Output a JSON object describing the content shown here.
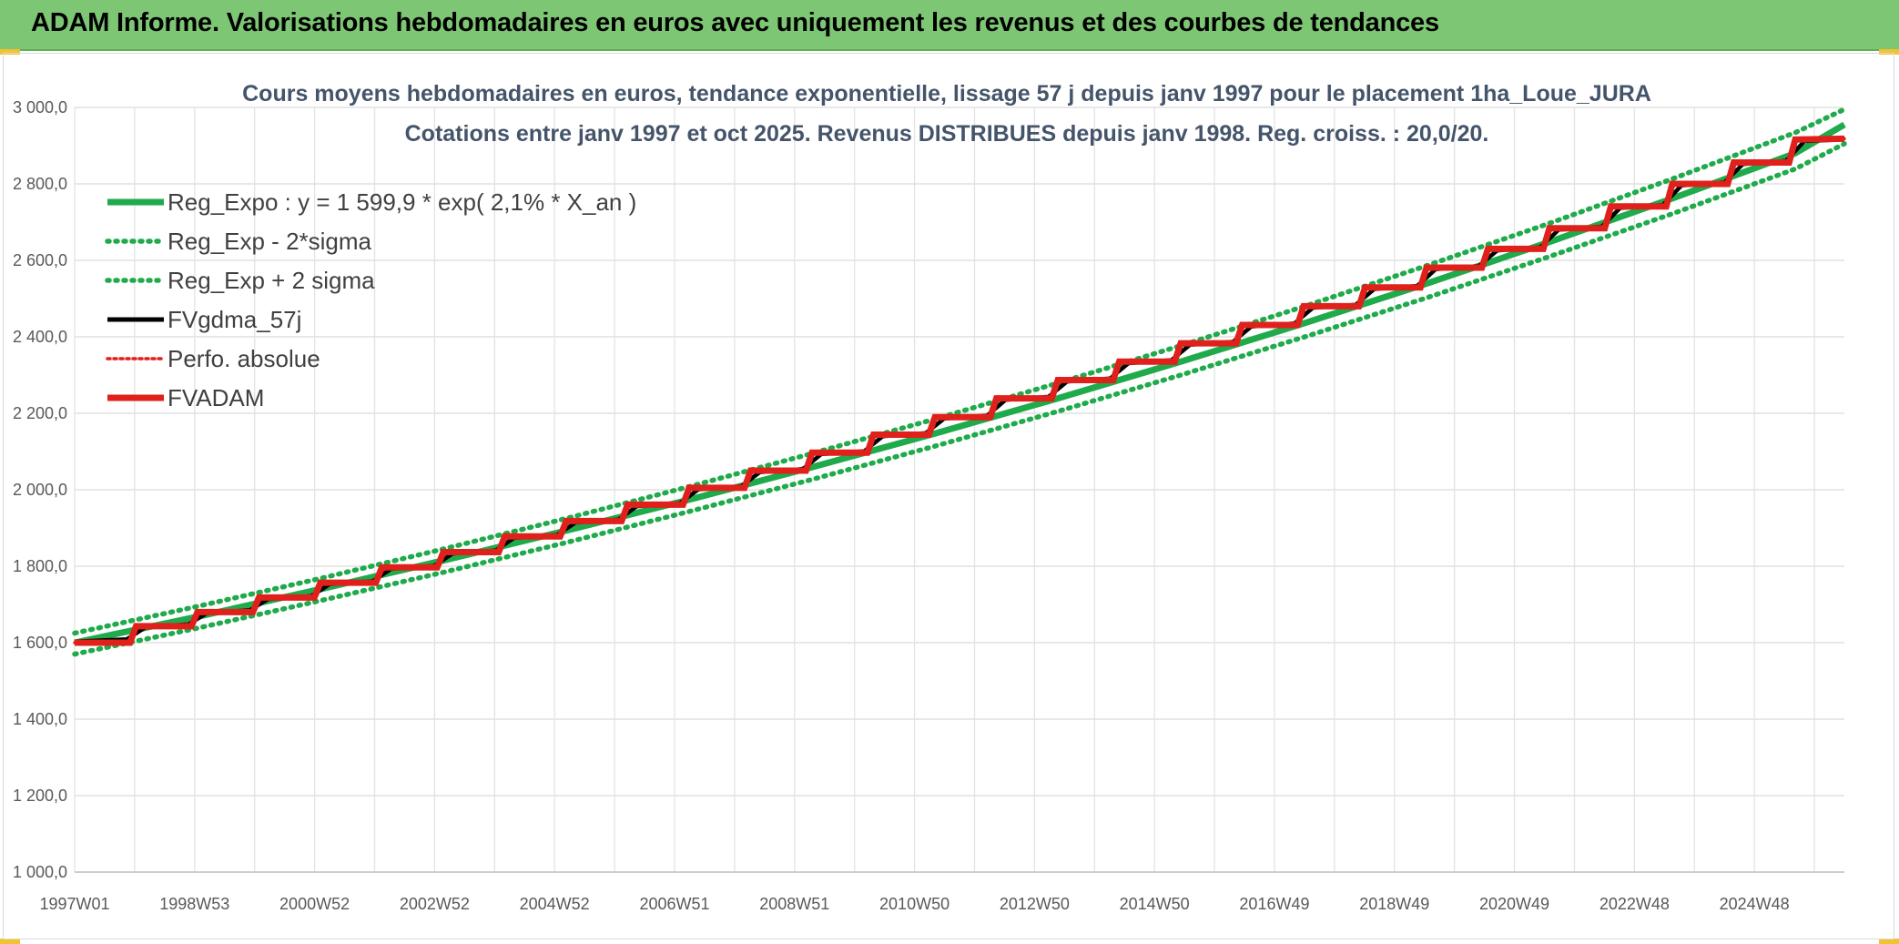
{
  "header": {
    "title": "ADAM Informe. Valorisations hebdomadaires en euros avec uniquement les revenus et des courbes de tendances"
  },
  "chart_data": {
    "type": "line",
    "title": "Cours moyens hebdomadaires en euros, tendance exponentielle, lissage 57 j depuis janv 1997 pour le placement 1ha_Loue_JURA",
    "subtitle": "Cotations entre janv 1997 et oct 2025. Revenus DISTRIBUES depuis janv 1998. Reg. croiss. : 20,0/20.",
    "xlabel": "",
    "ylabel": "",
    "ylim": [
      1000,
      3000
    ],
    "yticks": [
      1000,
      1200,
      1400,
      1600,
      1800,
      2000,
      2200,
      2400,
      2600,
      2800,
      3000
    ],
    "ytick_labels": [
      "1 000,0",
      "1 200,0",
      "1 400,0",
      "1 600,0",
      "1 800,0",
      "2 000,0",
      "2 200,0",
      "2 400,0",
      "2 600,0",
      "2 800,0",
      "3 000,0"
    ],
    "xlim": [
      1997.0,
      2025.8
    ],
    "x_tick_labels": [
      "1997W01",
      "1998W53",
      "2000W52",
      "2002W52",
      "2004W52",
      "2006W51",
      "2008W51",
      "2010W50",
      "2012W50",
      "2014W50",
      "2016W49",
      "2018W49",
      "2020W49",
      "2022W48",
      "2024W48"
    ],
    "grid": true,
    "legend_position": "top-left",
    "series": [
      {
        "name": "Reg_Expo : y = 1 599,9 * exp( 2,1% *  X_an )",
        "style": "solid",
        "color": "#1faa4b",
        "x": [
          1997.0,
          1999.0,
          2001.0,
          2003.0,
          2005.0,
          2007.0,
          2009.0,
          2011.0,
          2013.0,
          2015.0,
          2017.0,
          2019.0,
          2021.0,
          2023.0,
          2025.0,
          2025.8
        ],
        "values": [
          1600,
          1668,
          1740,
          1815,
          1893,
          1974,
          2059,
          2147,
          2239,
          2335,
          2435,
          2539,
          2648,
          2762,
          2880,
          2955
        ]
      },
      {
        "name": "Reg_Exp - 2*sigma",
        "style": "dotted",
        "color": "#1faa4b",
        "x": [
          1997.0,
          1999.0,
          2001.0,
          2003.0,
          2005.0,
          2007.0,
          2009.0,
          2011.0,
          2013.0,
          2015.0,
          2017.0,
          2019.0,
          2021.0,
          2023.0,
          2025.0,
          2025.8
        ],
        "values": [
          1570,
          1638,
          1710,
          1784,
          1862,
          1943,
          2027,
          2114,
          2205,
          2300,
          2399,
          2502,
          2610,
          2722,
          2839,
          2905
        ]
      },
      {
        "name": "Reg_Exp + 2 sigma",
        "style": "dotted",
        "color": "#1faa4b",
        "x": [
          1997.0,
          1999.0,
          2001.0,
          2003.0,
          2005.0,
          2007.0,
          2009.0,
          2011.0,
          2013.0,
          2015.0,
          2017.0,
          2019.0,
          2021.0,
          2023.0,
          2025.0,
          2025.8
        ],
        "values": [
          1625,
          1695,
          1768,
          1845,
          1925,
          2008,
          2095,
          2185,
          2279,
          2377,
          2479,
          2586,
          2697,
          2813,
          2934,
          2995
        ]
      },
      {
        "name": "FVgdma_57j",
        "style": "solid",
        "color": "#000000",
        "x": [
          1997.0,
          1997.85,
          1998.15,
          1998.85,
          1999.15,
          1999.85,
          2000.15,
          2000.85,
          2001.15,
          2001.85,
          2002.15,
          2002.85,
          2003.15,
          2003.85,
          2004.15,
          2004.85,
          2005.15,
          2005.85,
          2006.15,
          2006.85,
          2007.15,
          2007.85,
          2008.15,
          2008.85,
          2009.15,
          2009.85,
          2010.15,
          2010.85,
          2011.15,
          2011.85,
          2012.15,
          2012.85,
          2013.15,
          2013.85,
          2014.15,
          2014.85,
          2015.15,
          2015.85,
          2016.15,
          2016.85,
          2017.15,
          2017.85,
          2018.15,
          2018.85,
          2019.15,
          2019.85,
          2020.15,
          2020.85,
          2021.15,
          2021.85,
          2022.15,
          2022.85,
          2023.15,
          2023.85,
          2024.15,
          2024.85,
          2025.15,
          2025.8
        ],
        "values": [
          1603,
          1609,
          1640,
          1648,
          1677,
          1685,
          1714,
          1722,
          1753,
          1761,
          1793,
          1801,
          1833,
          1841,
          1874,
          1882,
          1914,
          1922,
          1957,
          1965,
          2001,
          2009,
          2046,
          2054,
          2093,
          2101,
          2140,
          2148,
          2186,
          2194,
          2235,
          2243,
          2283,
          2291,
          2331,
          2339,
          2379,
          2387,
          2427,
          2435,
          2476,
          2484,
          2525,
          2533,
          2577,
          2585,
          2626,
          2634,
          2680,
          2688,
          2737,
          2745,
          2796,
          2804,
          2852,
          2860,
          2912,
          2916
        ]
      },
      {
        "name": "Perfo. absolue",
        "style": "dotted",
        "color": "#e0201a",
        "x": [
          1997.0,
          1997.9,
          1998.0,
          1998.9,
          1999.0,
          1999.9,
          2000.0,
          2000.9,
          2001.0,
          2001.9,
          2002.0,
          2002.9,
          2003.0,
          2003.9,
          2004.0,
          2004.9,
          2005.0,
          2005.9,
          2006.0,
          2006.9,
          2007.0,
          2007.9,
          2008.0,
          2008.9,
          2009.0,
          2009.9,
          2010.0,
          2010.9,
          2011.0,
          2011.9,
          2012.0,
          2012.9,
          2013.0,
          2013.9,
          2014.0,
          2014.9,
          2015.0,
          2015.9,
          2016.0,
          2016.9,
          2017.0,
          2017.9,
          2018.0,
          2018.9,
          2019.0,
          2019.9,
          2020.0,
          2020.9,
          2021.0,
          2021.9,
          2022.0,
          2022.9,
          2023.0,
          2023.9,
          2024.0,
          2024.9,
          2025.0,
          2025.8
        ],
        "values": [
          1600,
          1600,
          1643,
          1643,
          1680,
          1680,
          1718,
          1718,
          1757,
          1757,
          1797,
          1797,
          1837,
          1837,
          1878,
          1878,
          1918,
          1918,
          1961,
          1961,
          2005,
          2005,
          2050,
          2050,
          2097,
          2097,
          2144,
          2144,
          2190,
          2190,
          2239,
          2239,
          2287,
          2287,
          2335,
          2335,
          2383,
          2383,
          2431,
          2431,
          2480,
          2480,
          2529,
          2529,
          2581,
          2581,
          2630,
          2630,
          2684,
          2684,
          2741,
          2741,
          2800,
          2800,
          2856,
          2856,
          2916,
          2918
        ]
      },
      {
        "name": "FVADAM",
        "style": "solid",
        "color": "#e0201a",
        "x": [
          1997.0,
          1997.9,
          1998.0,
          1998.9,
          1999.0,
          1999.9,
          2000.0,
          2000.9,
          2001.0,
          2001.9,
          2002.0,
          2002.9,
          2003.0,
          2003.9,
          2004.0,
          2004.9,
          2005.0,
          2005.9,
          2006.0,
          2006.9,
          2007.0,
          2007.9,
          2008.0,
          2008.9,
          2009.0,
          2009.9,
          2010.0,
          2010.9,
          2011.0,
          2011.9,
          2012.0,
          2012.9,
          2013.0,
          2013.9,
          2014.0,
          2014.9,
          2015.0,
          2015.9,
          2016.0,
          2016.9,
          2017.0,
          2017.9,
          2018.0,
          2018.9,
          2019.0,
          2019.9,
          2020.0,
          2020.9,
          2021.0,
          2021.9,
          2022.0,
          2022.9,
          2023.0,
          2023.9,
          2024.0,
          2024.9,
          2025.0,
          2025.8
        ],
        "values": [
          1600,
          1600,
          1643,
          1643,
          1680,
          1680,
          1718,
          1718,
          1757,
          1757,
          1797,
          1797,
          1837,
          1837,
          1878,
          1878,
          1918,
          1918,
          1961,
          1961,
          2005,
          2005,
          2050,
          2050,
          2097,
          2097,
          2144,
          2144,
          2190,
          2190,
          2239,
          2239,
          2287,
          2287,
          2335,
          2335,
          2383,
          2383,
          2431,
          2431,
          2480,
          2480,
          2529,
          2529,
          2581,
          2581,
          2630,
          2630,
          2684,
          2684,
          2741,
          2741,
          2800,
          2800,
          2856,
          2856,
          2916,
          2918
        ]
      }
    ]
  }
}
